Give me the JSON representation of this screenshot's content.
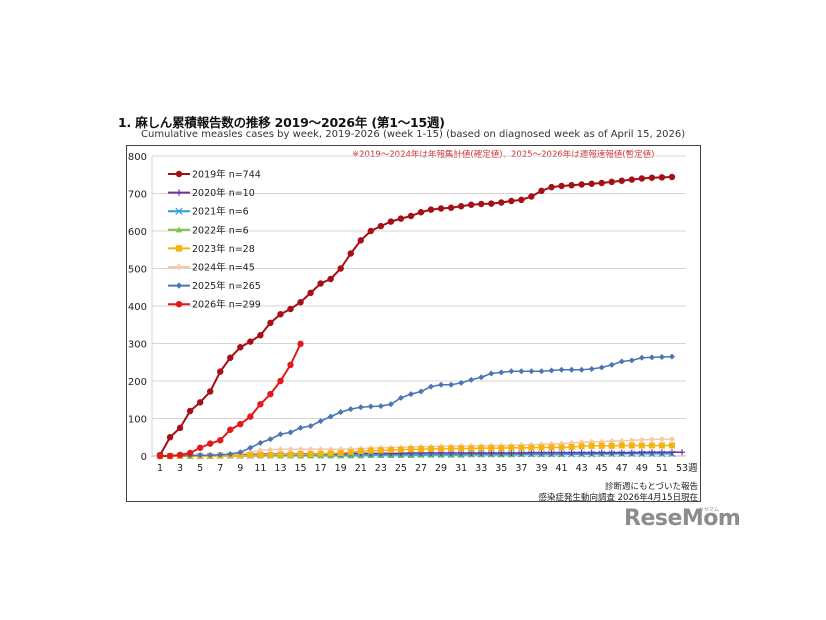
{
  "title": "1. 麻しん累積報告数の推移  2019～2026年 (第1～15週)",
  "subtitle": "Cumulative measles cases by week, 2019-2026 (week 1-15)  (based on diagnosed week as of April 15, 2026)",
  "note": "※2019～2024年は年報集計値(確定値)、2025～2026年は週報速報値(暫定値)",
  "footnotes": [
    "診断週にもとづいた報告",
    "感染症発生動向調査 2026年4月15日現在"
  ],
  "watermark": {
    "text": "ReseMom",
    "kana": "リセマム"
  },
  "chart_data": {
    "type": "line",
    "title": "Cumulative measles cases by week, 2019-2026",
    "xlabel": "週",
    "ylabel": "",
    "ylim": [
      0,
      800
    ],
    "yticks": [
      0,
      100,
      200,
      300,
      400,
      500,
      600,
      700,
      800
    ],
    "xlim": [
      1,
      53
    ],
    "xticks": [
      1,
      3,
      5,
      7,
      9,
      11,
      13,
      15,
      17,
      19,
      21,
      23,
      25,
      27,
      29,
      31,
      33,
      35,
      37,
      39,
      41,
      43,
      45,
      47,
      49,
      51,
      53
    ],
    "x_unit_label": "週",
    "grid": "horizontal",
    "legend_position": "upper-left-inside",
    "series": [
      {
        "name": "2019年 n=744",
        "color": "#a50f15",
        "marker": "circle",
        "values": [
          2,
          50,
          75,
          120,
          143,
          172,
          225,
          262,
          290,
          305,
          322,
          355,
          378,
          392,
          410,
          435,
          460,
          472,
          500,
          540,
          575,
          600,
          613,
          625,
          633,
          640,
          650,
          657,
          660,
          662,
          666,
          670,
          672,
          673,
          676,
          680,
          683,
          692,
          707,
          717,
          720,
          722,
          724,
          726,
          728,
          731,
          734,
          737,
          740,
          742,
          743,
          744
        ]
      },
      {
        "name": "2020年 n=10",
        "color": "#7030a0",
        "marker": "plus",
        "values": [
          0,
          0,
          1,
          1,
          2,
          2,
          3,
          3,
          3,
          4,
          5,
          5,
          5,
          5,
          6,
          6,
          6,
          6,
          6,
          7,
          7,
          7,
          7,
          7,
          7,
          8,
          8,
          8,
          8,
          8,
          8,
          8,
          8,
          8,
          8,
          8,
          8,
          9,
          9,
          9,
          9,
          9,
          9,
          9,
          9,
          9,
          9,
          9,
          10,
          10,
          10,
          10,
          10
        ]
      },
      {
        "name": "2021年 n=6",
        "color": "#2e9bdb",
        "marker": "x",
        "values": [
          0,
          0,
          0,
          0,
          0,
          0,
          1,
          1,
          1,
          1,
          2,
          2,
          2,
          2,
          2,
          3,
          3,
          3,
          3,
          3,
          3,
          3,
          3,
          4,
          4,
          4,
          4,
          4,
          4,
          4,
          4,
          5,
          5,
          5,
          5,
          5,
          5,
          5,
          5,
          5,
          5,
          5,
          5,
          5,
          6,
          6,
          6,
          6,
          6,
          6,
          6,
          6
        ]
      },
      {
        "name": "2022年 n=6",
        "color": "#7cc24a",
        "marker": "triangle",
        "values": [
          0,
          0,
          0,
          0,
          0,
          0,
          0,
          0,
          0,
          0,
          0,
          0,
          0,
          0,
          0,
          0,
          0,
          0,
          0,
          0,
          0,
          1,
          1,
          1,
          1,
          1,
          2,
          2,
          2,
          2,
          2,
          3,
          3,
          3,
          3,
          3,
          4,
          4,
          4,
          4,
          4,
          5,
          5,
          5,
          5,
          5,
          6,
          6,
          6,
          6,
          6,
          6
        ]
      },
      {
        "name": "2023年 n=28",
        "color": "#f5b312",
        "marker": "square",
        "values": [
          0,
          0,
          0,
          0,
          0,
          0,
          1,
          1,
          2,
          2,
          3,
          3,
          4,
          4,
          5,
          5,
          6,
          7,
          8,
          10,
          13,
          14,
          15,
          16,
          17,
          18,
          18,
          19,
          19,
          20,
          20,
          20,
          21,
          21,
          21,
          22,
          22,
          22,
          23,
          23,
          23,
          24,
          26,
          27,
          27,
          27,
          28,
          28,
          28,
          28,
          28,
          28
        ]
      },
      {
        "name": "2024年 n=45",
        "color": "#f6c9a8",
        "marker": "diamond",
        "values": [
          0,
          0,
          0,
          0,
          0,
          0,
          1,
          3,
          6,
          10,
          15,
          17,
          18,
          18,
          18,
          18,
          18,
          18,
          18,
          19,
          20,
          21,
          22,
          22,
          23,
          24,
          25,
          25,
          26,
          26,
          27,
          27,
          27,
          28,
          28,
          28,
          29,
          30,
          31,
          32,
          33,
          35,
          37,
          38,
          38,
          40,
          40,
          42,
          43,
          44,
          45,
          45
        ]
      },
      {
        "name": "2025年 n=265",
        "color": "#4a76b3",
        "marker": "diamond",
        "values": [
          1,
          1,
          1,
          1,
          2,
          2,
          3,
          5,
          10,
          22,
          35,
          45,
          58,
          63,
          75,
          80,
          93,
          105,
          117,
          125,
          130,
          132,
          133,
          138,
          155,
          165,
          172,
          185,
          190,
          190,
          195,
          203,
          210,
          220,
          223,
          226,
          226,
          226,
          226,
          228,
          230,
          230,
          230,
          232,
          236,
          243,
          252,
          255,
          262,
          263,
          264,
          265
        ]
      },
      {
        "name": "2026年 n=299",
        "color": "#e31a1c",
        "marker": "circle",
        "values": [
          0,
          0,
          3,
          8,
          22,
          33,
          42,
          70,
          85,
          105,
          138,
          165,
          200,
          243,
          299
        ]
      }
    ]
  }
}
